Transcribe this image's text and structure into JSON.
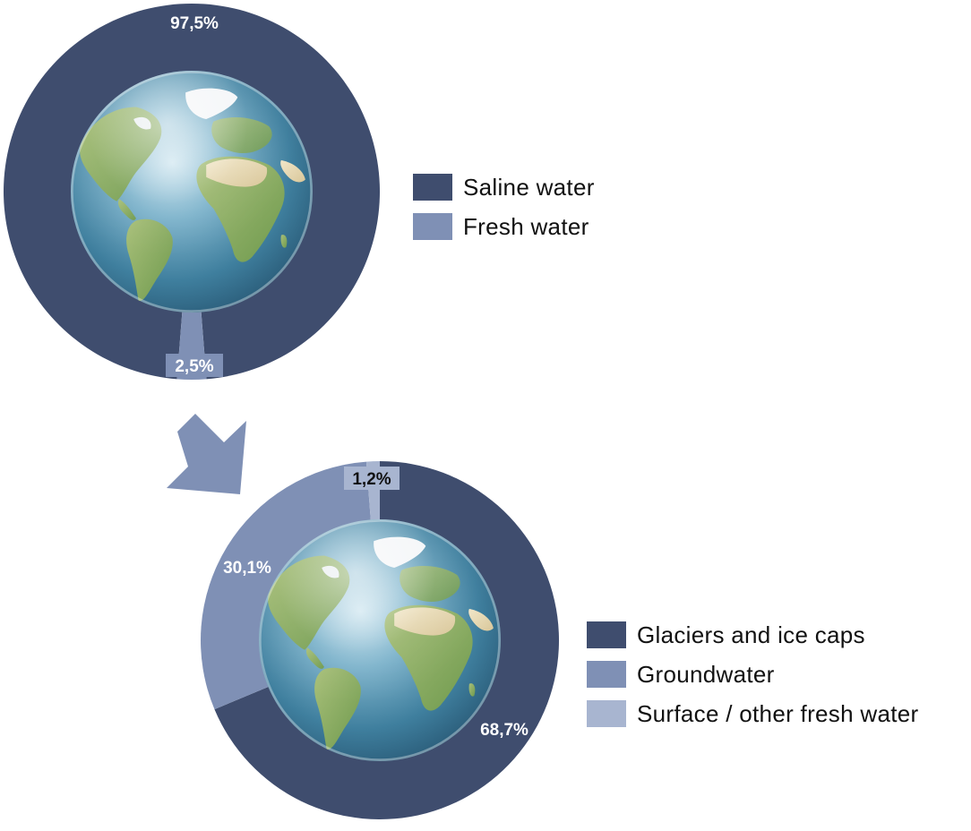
{
  "chart_data": [
    {
      "type": "pie",
      "title": "",
      "categories": [
        "Saline water",
        "Fresh water"
      ],
      "values": [
        97.5,
        2.5
      ],
      "labels": [
        "97,5%",
        "2,5%"
      ],
      "colors": [
        "#3f4d6e",
        "#7f90b5"
      ],
      "label_colors": [
        "#ffffff",
        "#ffffff"
      ],
      "legend": "right"
    },
    {
      "type": "pie",
      "title": "",
      "categories": [
        "Glaciers and ice caps",
        "Groundwater",
        "Surface / other fresh water"
      ],
      "values": [
        68.7,
        30.1,
        1.2
      ],
      "labels": [
        "68,7%",
        "30,1%",
        "1,2%"
      ],
      "colors": [
        "#3f4d6e",
        "#7f90b5",
        "#a8b5d0"
      ],
      "label_colors": [
        "#ffffff",
        "#ffffff",
        "#111111"
      ],
      "legend": "right"
    }
  ],
  "icons": {
    "globe": "earth-globe-icon",
    "arrow": "arrow-down-right-icon"
  }
}
